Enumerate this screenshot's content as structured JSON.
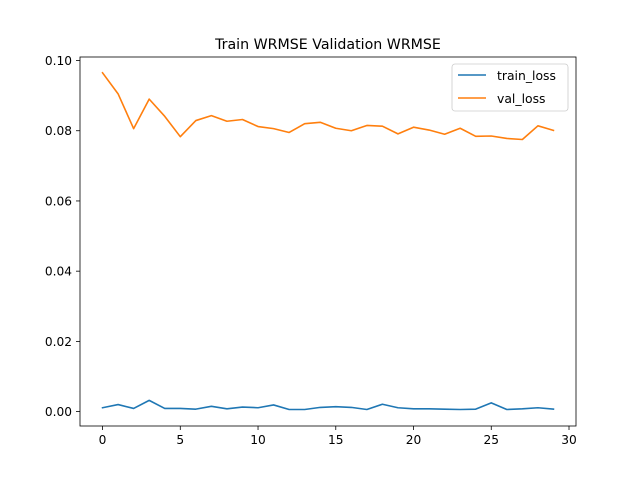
{
  "chart_data": {
    "type": "line",
    "title": "Train WRMSE Validation WRMSE",
    "xlabel": "",
    "ylabel": "",
    "xlim": [
      -1.45,
      30.45
    ],
    "ylim": [
      -0.0041,
      0.101
    ],
    "xticks": [
      0,
      5,
      10,
      15,
      20,
      25,
      30
    ],
    "xtick_labels": [
      "0",
      "5",
      "10",
      "15",
      "20",
      "25",
      "30"
    ],
    "yticks": [
      0.0,
      0.02,
      0.04,
      0.06,
      0.08,
      0.1
    ],
    "ytick_labels": [
      "0.00",
      "0.02",
      "0.04",
      "0.06",
      "0.08",
      "0.10"
    ],
    "grid": false,
    "legend_position": "top-right",
    "x": [
      0,
      1,
      2,
      3,
      4,
      5,
      6,
      7,
      8,
      9,
      10,
      11,
      12,
      13,
      14,
      15,
      16,
      17,
      18,
      19,
      20,
      21,
      22,
      23,
      24,
      25,
      26,
      27,
      28,
      29
    ],
    "series": [
      {
        "name": "train_loss",
        "color": "#1f77b4",
        "values": [
          0.0011,
          0.002,
          0.0009,
          0.0032,
          0.0009,
          0.0009,
          0.0007,
          0.0015,
          0.0008,
          0.0013,
          0.0011,
          0.0019,
          0.0006,
          0.0006,
          0.0012,
          0.0014,
          0.0012,
          0.0006,
          0.0021,
          0.0011,
          0.0008,
          0.0008,
          0.0007,
          0.0006,
          0.0007,
          0.0025,
          0.0006,
          0.0008,
          0.0011,
          0.0007
        ]
      },
      {
        "name": "val_loss",
        "color": "#ff7f0e",
        "values": [
          0.0965,
          0.0905,
          0.0806,
          0.089,
          0.0841,
          0.0783,
          0.0829,
          0.0843,
          0.0827,
          0.0832,
          0.0812,
          0.0806,
          0.0795,
          0.082,
          0.0824,
          0.0807,
          0.08,
          0.0815,
          0.0813,
          0.0791,
          0.081,
          0.0802,
          0.079,
          0.0807,
          0.0784,
          0.0785,
          0.0778,
          0.0775,
          0.0814,
          0.0801
        ]
      }
    ]
  }
}
